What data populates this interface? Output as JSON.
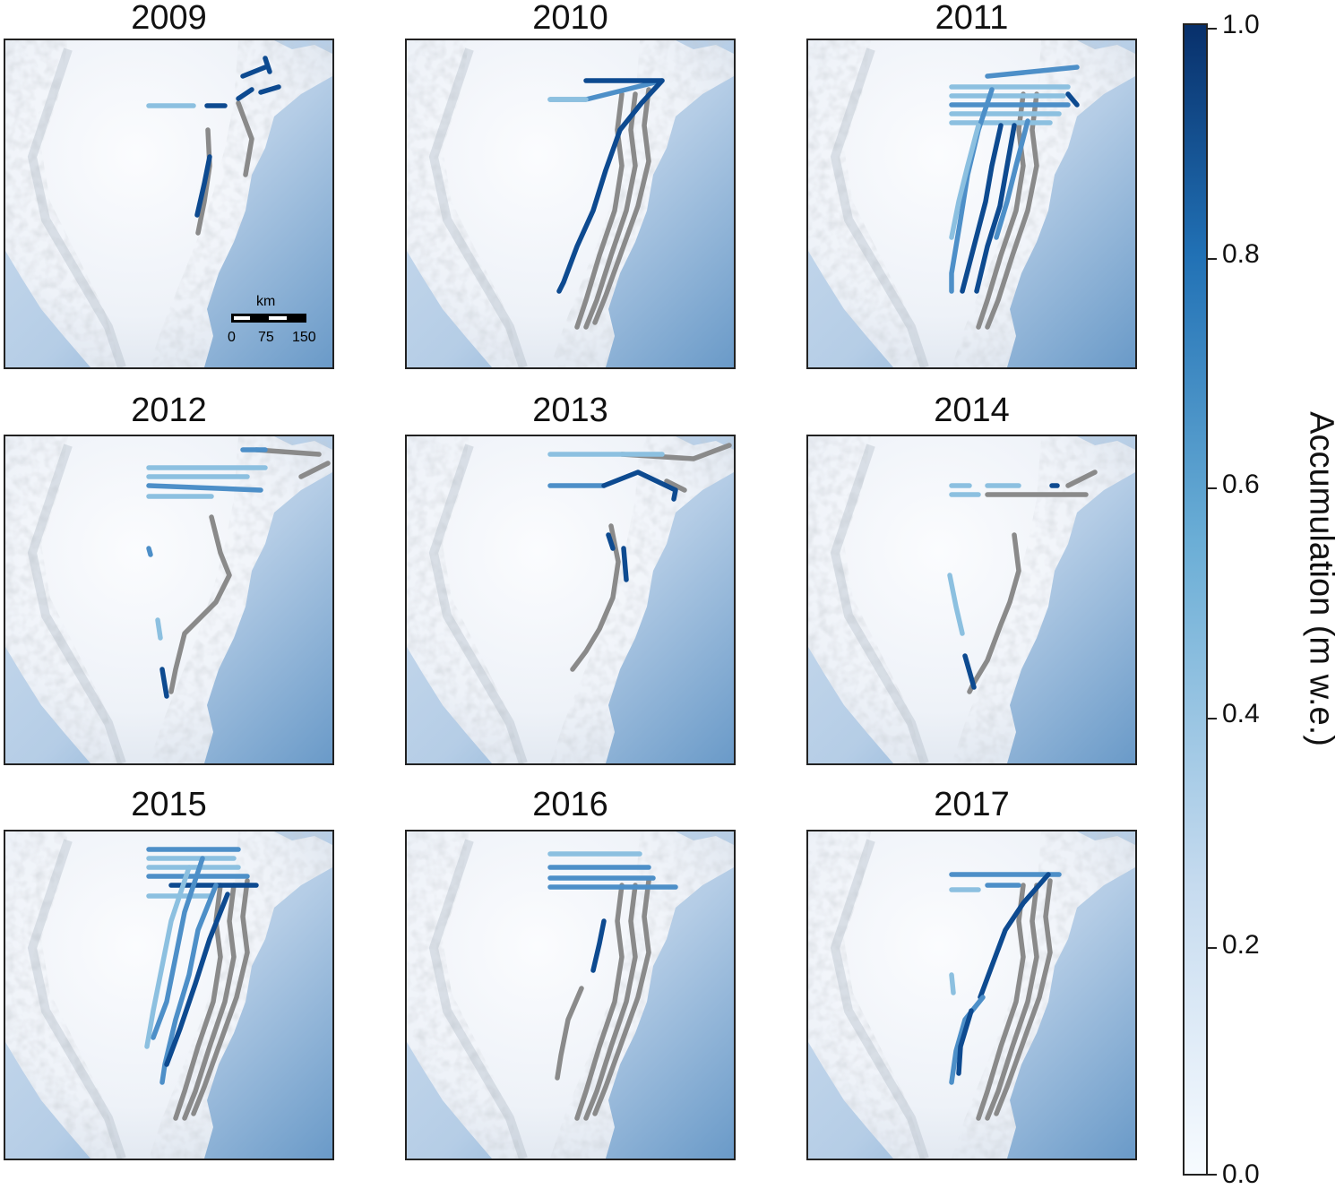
{
  "panels": [
    {
      "year": "2009"
    },
    {
      "year": "2010"
    },
    {
      "year": "2011"
    },
    {
      "year": "2012"
    },
    {
      "year": "2013"
    },
    {
      "year": "2014"
    },
    {
      "year": "2015"
    },
    {
      "year": "2016"
    },
    {
      "year": "2017"
    }
  ],
  "scalebar": {
    "unit": "km",
    "labels": [
      "0",
      "75",
      "150"
    ]
  },
  "colorbar": {
    "title": "Accumulation (m w.e.)",
    "ticks": [
      "1.0",
      "0.8",
      "0.6",
      "0.4",
      "0.2",
      "0.0"
    ],
    "range": [
      0.0,
      1.0
    ],
    "color_low": "#f7fbff",
    "color_mid": "#6baed6",
    "color_high": "#08306b"
  },
  "colors": {
    "no_data_track": "#8a8a8a",
    "ocean": "#6a9ac8",
    "ice": "#eef2f8"
  }
}
